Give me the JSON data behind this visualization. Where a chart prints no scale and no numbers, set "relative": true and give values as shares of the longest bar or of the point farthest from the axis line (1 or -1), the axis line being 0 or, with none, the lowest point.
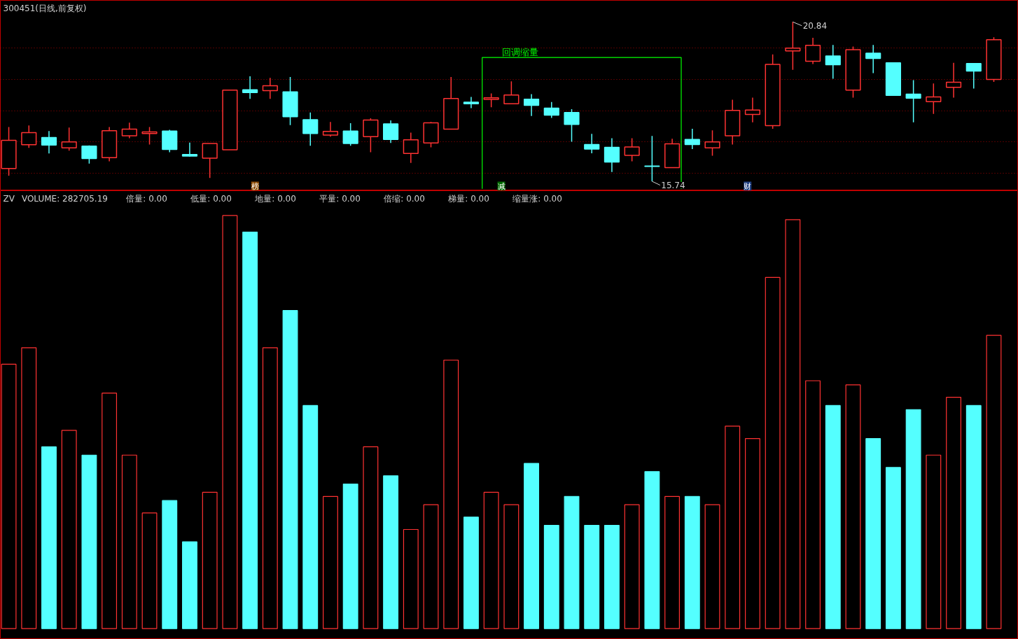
{
  "chart_data": [
    {
      "type": "candlestick",
      "title": "300451(日线,前复权)",
      "categories": [
        null,
        null,
        null,
        null,
        null,
        null,
        null,
        null,
        null,
        null,
        null,
        null,
        null,
        null,
        null,
        null,
        null,
        null,
        null,
        null,
        null,
        null,
        null,
        null,
        null,
        null,
        null,
        null,
        null,
        null,
        null,
        null,
        null,
        null,
        null,
        null,
        null,
        null,
        null,
        null,
        null,
        null,
        null,
        null,
        null,
        null,
        null,
        null,
        null,
        null
      ],
      "ohlc": [
        [
          16.15,
          17.48,
          15.92,
          17.05
        ],
        [
          16.91,
          17.53,
          16.81,
          17.3
        ],
        [
          17.14,
          17.35,
          16.63,
          16.9
        ],
        [
          16.81,
          17.46,
          16.72,
          17.0
        ],
        [
          16.87,
          16.89,
          16.31,
          16.47
        ],
        [
          16.5,
          17.48,
          16.38,
          17.36
        ],
        [
          17.2,
          17.62,
          17.12,
          17.41
        ],
        [
          17.27,
          17.48,
          16.92,
          17.32
        ],
        [
          17.35,
          17.39,
          16.67,
          16.76
        ],
        [
          16.6,
          16.98,
          16.53,
          16.55
        ],
        [
          16.48,
          16.95,
          15.85,
          16.95
        ],
        [
          16.75,
          18.66,
          16.75,
          18.66
        ],
        [
          18.67,
          19.1,
          18.38,
          18.58
        ],
        [
          18.64,
          19.05,
          18.38,
          18.8
        ],
        [
          18.6,
          19.08,
          17.54,
          17.81
        ],
        [
          17.71,
          17.94,
          16.88,
          17.27
        ],
        [
          17.22,
          17.64,
          17.17,
          17.34
        ],
        [
          17.35,
          17.6,
          16.88,
          16.95
        ],
        [
          17.17,
          17.76,
          16.67,
          17.7
        ],
        [
          17.58,
          17.69,
          16.97,
          17.08
        ],
        [
          16.63,
          17.3,
          16.33,
          17.07
        ],
        [
          16.97,
          17.64,
          16.83,
          17.61
        ],
        [
          17.41,
          19.08,
          17.41,
          18.39
        ],
        [
          18.27,
          18.44,
          18.08,
          18.22
        ],
        [
          18.36,
          18.55,
          18.11,
          18.41
        ],
        [
          18.22,
          18.94,
          18.22,
          18.5
        ],
        [
          18.37,
          18.53,
          17.83,
          18.17
        ],
        [
          18.08,
          18.28,
          17.77,
          17.86
        ],
        [
          17.94,
          18.05,
          17.01,
          17.56
        ],
        [
          16.92,
          17.26,
          16.64,
          16.77
        ],
        [
          16.83,
          17.12,
          16.04,
          16.36
        ],
        [
          16.57,
          17.12,
          16.38,
          16.84
        ],
        [
          16.23,
          17.19,
          15.74,
          16.22
        ],
        [
          16.18,
          17.1,
          16.18,
          16.94
        ],
        [
          17.08,
          17.42,
          16.77,
          16.92
        ],
        [
          16.81,
          17.37,
          16.56,
          17.0
        ],
        [
          17.2,
          18.35,
          16.92,
          18.01
        ],
        [
          17.88,
          18.42,
          17.63,
          18.02
        ],
        [
          17.52,
          19.8,
          17.42,
          19.48
        ],
        [
          19.91,
          20.84,
          19.31,
          20.0
        ],
        [
          19.58,
          20.33,
          19.49,
          20.09
        ],
        [
          19.75,
          20.1,
          19.02,
          19.47
        ],
        [
          18.66,
          20.05,
          18.42,
          19.95
        ],
        [
          19.84,
          20.1,
          19.2,
          19.67
        ],
        [
          19.53,
          19.53,
          18.49,
          18.49
        ],
        [
          18.53,
          18.98,
          17.63,
          18.4
        ],
        [
          18.29,
          18.87,
          17.9,
          18.44
        ],
        [
          18.75,
          19.53,
          18.42,
          18.91
        ],
        [
          19.51,
          19.51,
          18.71,
          19.27
        ],
        [
          19.0,
          20.35,
          18.92,
          20.27
        ]
      ],
      "colors": [
        "#ff3232",
        "#ff3232",
        "#54ffff",
        "#ff3232",
        "#54ffff",
        "#ff3232",
        "#ff3232",
        "#ff3232",
        "#54ffff",
        "#54ffff",
        "#ff3232",
        "#ff3232",
        "#54ffff",
        "#ff3232",
        "#54ffff",
        "#54ffff",
        "#ff3232",
        "#54ffff",
        "#ff3232",
        "#54ffff",
        "#ff3232",
        "#ff3232",
        "#ff3232",
        "#54ffff",
        "#ff3232",
        "#ff3232",
        "#54ffff",
        "#54ffff",
        "#54ffff",
        "#54ffff",
        "#54ffff",
        "#ff3232",
        "#54ffff",
        "#ff3232",
        "#54ffff",
        "#ff3232",
        "#ff3232",
        "#ff3232",
        "#ff3232",
        "#ff3232",
        "#ff3232",
        "#54ffff",
        "#ff3232",
        "#54ffff",
        "#54ffff",
        "#54ffff",
        "#ff3232",
        "#ff3232",
        "#54ffff",
        "#ff3232"
      ],
      "ylim": [
        15.44,
        21.53
      ],
      "yticks": [
        {
          "value": 16,
          "label": null
        },
        {
          "value": 17,
          "label": null
        },
        {
          "value": 18,
          "label": null
        },
        {
          "value": 19,
          "label": null
        },
        {
          "value": 20,
          "label": null
        }
      ],
      "grid": "y",
      "tick_labels": false,
      "annotations": [
        "20.84",
        "15.74",
        "回调缩量",
        "榜",
        "减",
        "财"
      ]
    },
    {
      "type": "bar",
      "relative": true,
      "tick_labels": false,
      "categories": [
        null,
        null,
        null,
        null,
        null,
        null,
        null,
        null,
        null,
        null,
        null,
        null,
        null,
        null,
        null,
        null,
        null,
        null,
        null,
        null,
        null,
        null,
        null,
        null,
        null,
        null,
        null,
        null,
        null,
        null,
        null,
        null,
        null,
        null,
        null,
        null,
        null,
        null,
        null,
        null,
        null,
        null,
        null,
        null,
        null,
        null,
        null,
        null,
        null,
        null
      ],
      "series": [
        {
          "color": "#ff3232",
          "colors": [
            "#ff3232",
            "#ff3232",
            "#54ffff",
            "#ff3232",
            "#54ffff",
            "#ff3232",
            "#ff3232",
            "#ff3232",
            "#54ffff",
            "#54ffff",
            "#ff3232",
            "#ff3232",
            "#54ffff",
            "#ff3232",
            "#54ffff",
            "#54ffff",
            "#ff3232",
            "#54ffff",
            "#ff3232",
            "#54ffff",
            "#ff3232",
            "#ff3232",
            "#ff3232",
            "#54ffff",
            "#ff3232",
            "#ff3232",
            "#54ffff",
            "#54ffff",
            "#54ffff",
            "#54ffff",
            "#54ffff",
            "#ff3232",
            "#54ffff",
            "#ff3232",
            "#54ffff",
            "#ff3232",
            "#ff3232",
            "#ff3232",
            "#ff3232",
            "#ff3232",
            "#ff3232",
            "#54ffff",
            "#ff3232",
            "#54ffff",
            "#54ffff",
            "#54ffff",
            "#ff3232",
            "#ff3232",
            "#54ffff",
            "#ff3232"
          ],
          "values": [
            0.64,
            0.68,
            0.44,
            0.48,
            0.42,
            0.57,
            0.42,
            0.28,
            0.31,
            0.21,
            0.33,
            1,
            0.96,
            0.68,
            0.77,
            0.54,
            0.32,
            0.35,
            0.44,
            0.37,
            0.24,
            0.3,
            0.65,
            0.27,
            0.33,
            0.3,
            0.4,
            0.25,
            0.32,
            0.25,
            0.25,
            0.3,
            0.38,
            0.32,
            0.32,
            0.3,
            0.49,
            0.46,
            0.85,
            0.99,
            0.6,
            0.54,
            0.59,
            0.46,
            0.39,
            0.53,
            0.42,
            0.56,
            0.54,
            0.71
          ]
        }
      ],
      "annotations": [
        "ZV",
        "VOLUME: 282705.19",
        "倍量: 0.00",
        "低量: 0.00",
        "地量: 0.00",
        "平量: 0.00",
        "倍缩: 0.00",
        "梯量: 0.00",
        "缩量涨: 0.00"
      ]
    }
  ]
}
